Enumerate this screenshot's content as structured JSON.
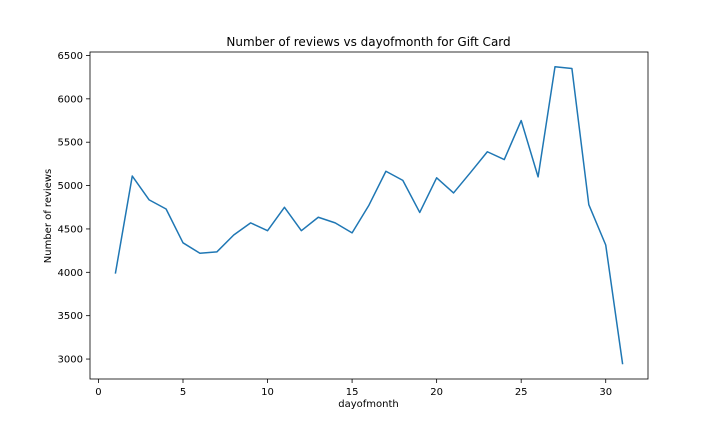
{
  "chart_data": {
    "type": "line",
    "title": "Number of reviews vs dayofmonth for Gift Card",
    "xlabel": "dayofmonth",
    "ylabel": "Number of reviews",
    "xlim": [
      -0.5,
      32.5
    ],
    "ylim": [
      2770,
      6540
    ],
    "xticks": [
      0,
      5,
      10,
      15,
      20,
      25,
      30
    ],
    "yticks": [
      3000,
      3500,
      4000,
      4500,
      5000,
      5500,
      6000,
      6500
    ],
    "grid": false,
    "line_color": "#1f77b4",
    "series": [
      {
        "x": [
          1,
          2,
          3,
          4,
          5,
          6,
          7,
          8,
          9,
          10,
          11,
          12,
          13,
          14,
          15,
          16,
          17,
          18,
          19,
          20,
          21,
          22,
          23,
          24,
          25,
          26,
          27,
          28,
          29,
          30,
          31
        ],
        "values": [
          3985,
          5110,
          4835,
          4730,
          4340,
          4220,
          4235,
          4430,
          4570,
          4480,
          4750,
          4480,
          4635,
          4570,
          4455,
          4775,
          5165,
          5060,
          4690,
          5090,
          4915,
          5150,
          5390,
          5300,
          5750,
          5100,
          6370,
          6350,
          4780,
          4315,
          2940
        ]
      }
    ]
  }
}
